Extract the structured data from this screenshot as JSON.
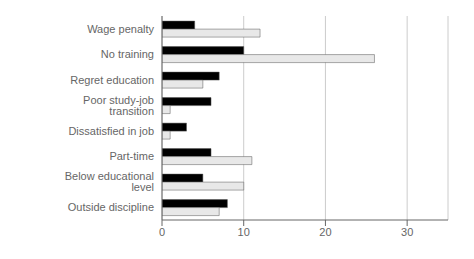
{
  "chart_data": {
    "type": "bar",
    "orientation": "horizontal",
    "categories": [
      "Wage penalty",
      "No training",
      "Regret education",
      "Poor study-job transition",
      "Dissatisfied in job",
      "Part-time",
      "Below educational level",
      "Outside discipline"
    ],
    "series": [
      {
        "color": "#000000",
        "values": [
          4,
          10,
          7,
          6,
          3,
          6,
          5,
          8
        ]
      },
      {
        "color": "#e8e8e8",
        "values": [
          12,
          26,
          5,
          1,
          1,
          11,
          10,
          7
        ]
      }
    ],
    "xlim": [
      0,
      35
    ],
    "xticks": [
      0,
      10,
      20,
      30
    ],
    "grid": true
  }
}
